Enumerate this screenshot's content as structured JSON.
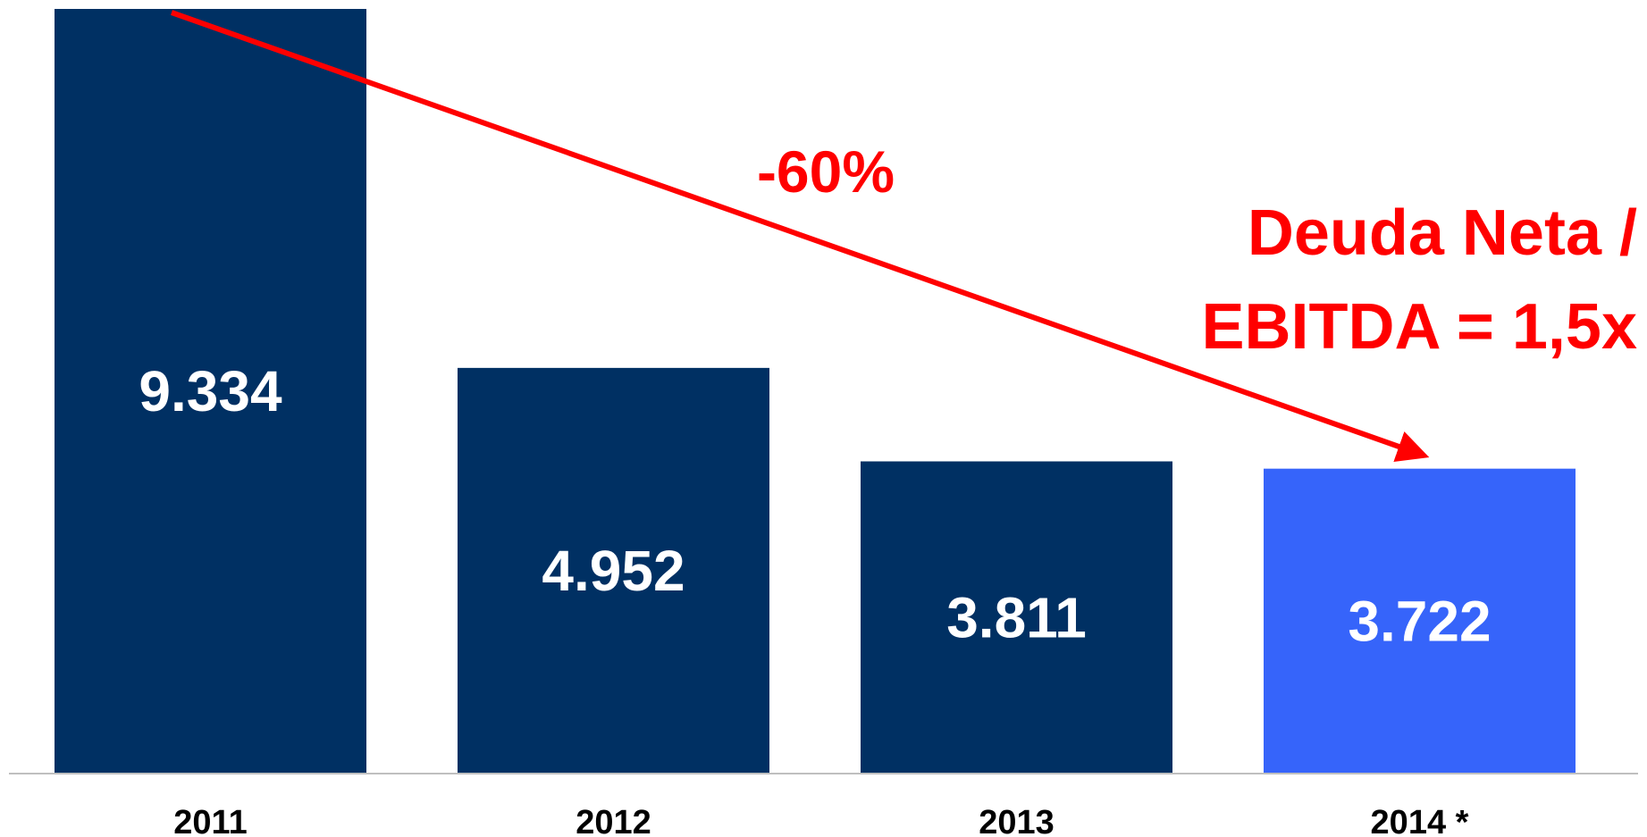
{
  "chart_data": {
    "type": "bar",
    "categories": [
      "2011",
      "2012",
      "2013",
      "2014 *"
    ],
    "values": [
      9334,
      4952,
      3811,
      3722
    ],
    "value_labels": [
      "9.334",
      "4.952",
      "3.811",
      "3.722"
    ],
    "title": "",
    "xlabel": "",
    "ylabel": "",
    "ylim": [
      0,
      9334
    ],
    "grid": false,
    "legend": "none",
    "colors": {
      "bar": "#003063",
      "highlight_bar": "#3664fa",
      "annotation": "#ff0000",
      "axis": "#bfbfbf"
    },
    "highlight_index": 3,
    "annotations": {
      "change": "-60%",
      "ratio_line1": "Deuda Neta /",
      "ratio_line2": "EBITDA = 1,5x"
    }
  }
}
